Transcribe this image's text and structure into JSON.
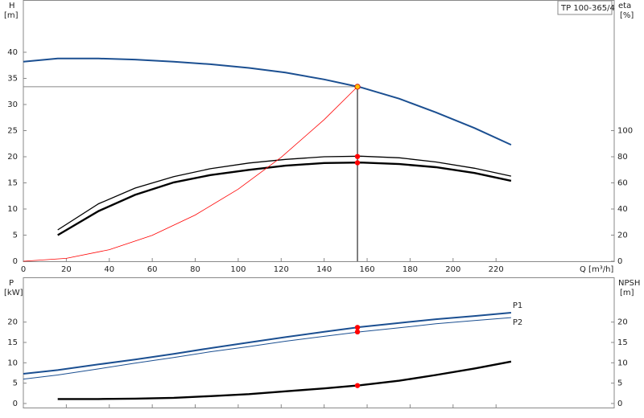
{
  "chart_data": [
    {
      "type": "line",
      "x_label": "Q [m³/h]",
      "y_label": "H",
      "y_unit": "[m]",
      "y2_label": "eta",
      "y2_unit": "[%]",
      "title": "TP 100-365/4",
      "x": [
        0,
        16,
        35,
        52,
        70,
        87,
        105,
        122,
        140,
        157,
        175,
        192,
        210,
        227
      ],
      "xlim": [
        0,
        275
      ],
      "xticks": [
        0,
        20,
        40,
        60,
        80,
        100,
        120,
        140,
        160,
        180,
        200,
        220
      ],
      "ylim": [
        0,
        50
      ],
      "yticks": [
        0,
        5,
        10,
        15,
        20,
        25,
        30,
        35,
        40
      ],
      "y2lim": [
        0,
        200
      ],
      "y2ticks": [
        0,
        20,
        40,
        60,
        80,
        100
      ],
      "series": [
        {
          "color": "#1b4f91",
          "values": [
            38.2,
            38.8,
            38.8,
            38.6,
            38.2,
            37.7,
            37.0,
            36.1,
            34.8,
            33.3,
            31.1,
            28.5,
            25.5,
            22.3
          ]
        },
        {
          "color": "#000000",
          "axis": "y2",
          "values": [
            null,
            24,
            44,
            56,
            64.8,
            70.8,
            75.2,
            78,
            80,
            80.4,
            79.2,
            76,
            71.2,
            65.2
          ]
        },
        {
          "color": "#000000",
          "axis": "y2",
          "values": [
            null,
            20,
            38.4,
            50.8,
            60.4,
            66,
            70,
            73.2,
            75.2,
            75.6,
            74.4,
            72,
            67.6,
            61.6
          ]
        },
        {
          "color": "#ff0000",
          "x": [
            0,
            20,
            40,
            60,
            80,
            100,
            120,
            140,
            155.5
          ],
          "values": [
            0,
            0.55,
            2.21,
            4.97,
            8.84,
            13.8,
            19.9,
            27.1,
            33.4
          ]
        }
      ],
      "markers": [
        {
          "x": 155.5,
          "y": 33.4,
          "color": "#ffc000"
        },
        {
          "x": 155.5,
          "y": 80.2,
          "axis": "y2",
          "color": "#ff0000"
        },
        {
          "x": 155.5,
          "y": 75.4,
          "axis": "y2",
          "color": "#ff0000"
        }
      ]
    },
    {
      "type": "line",
      "y_label": "P",
      "y_unit": "[kW]",
      "y2_label": "NPSH",
      "y2_unit": "[m]",
      "x": [
        0,
        16,
        35,
        52,
        70,
        87,
        105,
        122,
        140,
        157,
        175,
        192,
        210,
        227
      ],
      "xlim": [
        0,
        275
      ],
      "xticks": [
        0,
        20,
        40,
        60,
        80,
        100,
        120,
        140,
        160,
        180,
        200,
        220
      ],
      "ylim": [
        -1,
        31
      ],
      "yticks": [
        0,
        5,
        10,
        15,
        20
      ],
      "y2lim": [
        -1,
        31
      ],
      "y2ticks": [
        0,
        5,
        10,
        15,
        20
      ],
      "series": [
        {
          "name": "P1",
          "color": "#1b4f91",
          "values": [
            7.3,
            8.2,
            9.6,
            10.8,
            12.2,
            13.6,
            15,
            16.3,
            17.6,
            18.8,
            19.8,
            20.7,
            21.5,
            22.3
          ]
        },
        {
          "name": "P2",
          "color": "#1b4f91",
          "values": [
            6,
            7,
            8.5,
            9.9,
            11.3,
            12.7,
            14,
            15.3,
            16.5,
            17.6,
            18.6,
            19.6,
            20.4,
            21.1
          ]
        },
        {
          "color": "#000000",
          "axis": "y2",
          "values": [
            null,
            1.1,
            1.1,
            1.2,
            1.4,
            1.8,
            2.3,
            3.0,
            3.7,
            4.5,
            5.6,
            7.0,
            8.6,
            10.3
          ]
        }
      ],
      "markers": [
        {
          "x": 155.5,
          "y": 18.7,
          "color": "#ff0000"
        },
        {
          "x": 155.5,
          "y": 17.6,
          "color": "#ff0000"
        },
        {
          "x": 155.5,
          "y": 4.4,
          "axis": "y2",
          "color": "#ff0000"
        }
      ]
    }
  ]
}
